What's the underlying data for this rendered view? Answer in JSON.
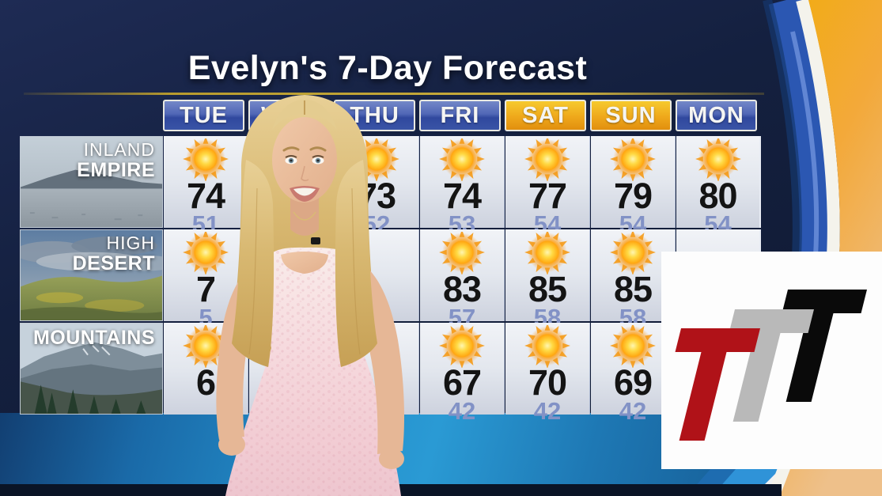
{
  "title": "Evelyn's 7-Day Forecast",
  "days": [
    {
      "label": "TUE",
      "style": "blue"
    },
    {
      "label": "WED",
      "style": "blue"
    },
    {
      "label": "THU",
      "style": "blue"
    },
    {
      "label": "FRI",
      "style": "blue"
    },
    {
      "label": "SAT",
      "style": "gold"
    },
    {
      "label": "SUN",
      "style": "gold"
    },
    {
      "label": "MON",
      "style": "blue"
    }
  ],
  "regions": [
    {
      "name_line1": "INLAND",
      "name_line2": "EMPIRE",
      "forecast": [
        {
          "icon": "sunny",
          "high": "74",
          "low": "51"
        },
        {
          "icon": null,
          "high": null,
          "low": null
        },
        {
          "icon": "sunny",
          "high": "73",
          "low": "52"
        },
        {
          "icon": "sunny",
          "high": "74",
          "low": "53"
        },
        {
          "icon": "sunny",
          "high": "77",
          "low": "54"
        },
        {
          "icon": "sunny",
          "high": "79",
          "low": "54"
        },
        {
          "icon": "sunny",
          "high": "80",
          "low": "54"
        }
      ]
    },
    {
      "name_line1": "HIGH",
      "name_line2": "DESERT",
      "forecast": [
        {
          "icon": "sunny",
          "high": "7",
          "low": "5"
        },
        {
          "icon": null,
          "high": null,
          "low": null
        },
        {
          "icon": null,
          "high": null,
          "low": null
        },
        {
          "icon": "sunny",
          "high": "83",
          "low": "57"
        },
        {
          "icon": "sunny",
          "high": "85",
          "low": "58"
        },
        {
          "icon": "sunny",
          "high": "85",
          "low": "58"
        },
        {
          "icon": null,
          "high": null,
          "low": null
        }
      ]
    },
    {
      "name_line1": "",
      "name_line2": "MOUNTAINS",
      "forecast": [
        {
          "icon": "sunny",
          "high": "6",
          "low": null
        },
        {
          "icon": null,
          "high": null,
          "low": null
        },
        {
          "icon": null,
          "high": null,
          "low": null
        },
        {
          "icon": "sunny",
          "high": "67",
          "low": "42"
        },
        {
          "icon": "sunny",
          "high": "70",
          "low": "42"
        },
        {
          "icon": "sunny",
          "high": "69",
          "low": "42"
        },
        {
          "icon": null,
          "high": null,
          "low": null
        }
      ]
    }
  ],
  "logo": {
    "letters": [
      "T",
      "T",
      "T"
    ],
    "letter_colors": [
      "#b01218",
      "#b9b9b9",
      "#0a0a0a"
    ],
    "background": "#fdfdfd"
  },
  "colors": {
    "header_blue": "#3a54a6",
    "header_gold": "#efa81b",
    "high_temp": "#141414",
    "low_temp": "#8292c6",
    "title_text": "#ffffff",
    "floor_blue": "#2490cc",
    "side_band_gold": "#f2ac10",
    "side_band_blue": "#2b57b2",
    "background_navy": "#14203f"
  }
}
